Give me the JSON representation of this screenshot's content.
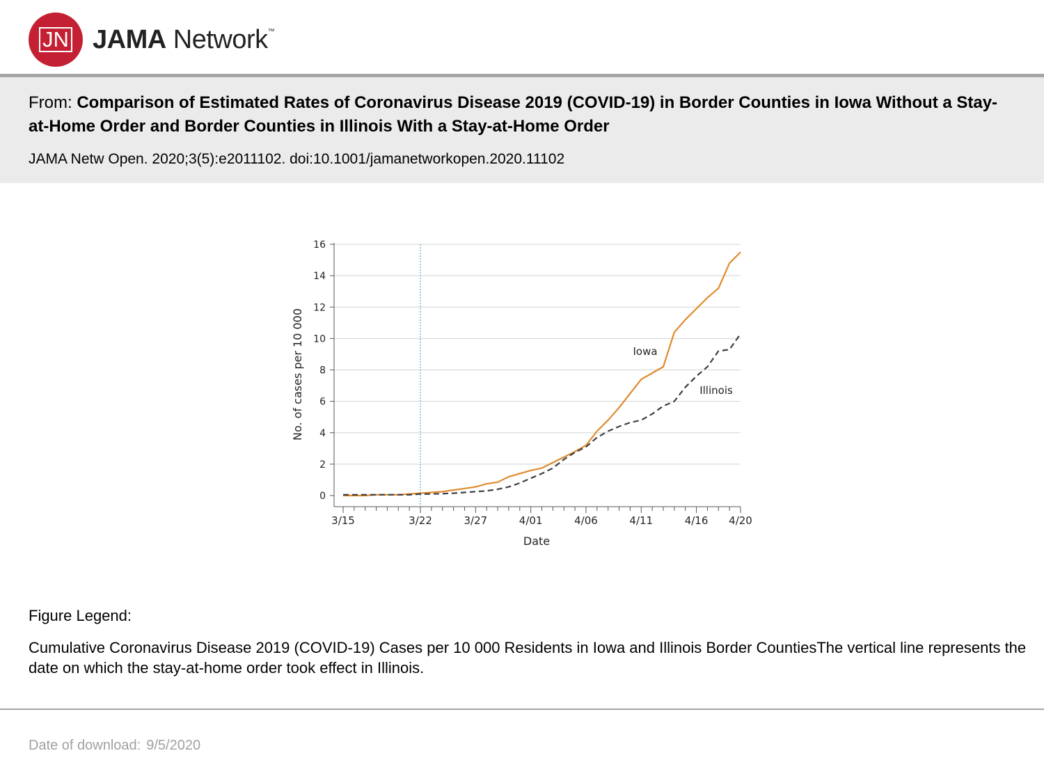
{
  "logo": {
    "mark": "JN",
    "brand_bold": "JAMA",
    "brand_rest": "Network",
    "tm": "™"
  },
  "header": {
    "from_label": "From:",
    "title": "Comparison of Estimated Rates of Coronavirus Disease 2019 (COVID-19) in Border Counties in Iowa Without a Stay-at-Home Order and Border Counties in Illinois With a Stay-at-Home Order",
    "citation": "JAMA Netw Open. 2020;3(5):e2011102. doi:10.1001/jamanetworkopen.2020.11102"
  },
  "legend": {
    "title": "Figure Legend:",
    "text": "Cumulative Coronavirus Disease 2019 (COVID-19) Cases per 10 000 Residents in Iowa and Illinois Border CountiesThe vertical line represents the date on which the stay-at-home order took effect in Illinois."
  },
  "footer": {
    "download_label": "Date of download:",
    "download_date": "9/5/2020"
  },
  "colors": {
    "brand_red": "#c42033",
    "iowa": "#e08a2c",
    "illinois": "#3a3f44",
    "order_line": "#5aa9c6"
  },
  "chart_data": {
    "type": "line",
    "xlabel": "Date",
    "ylabel": "No. of cases per 10 000",
    "ylim": [
      0,
      16
    ],
    "yticks": [
      0,
      2,
      4,
      6,
      8,
      10,
      12,
      14,
      16
    ],
    "xlim": [
      "3/15",
      "4/20"
    ],
    "xtick_labels": [
      "3/15",
      "3/22",
      "3/27",
      "4/01",
      "4/06",
      "4/11",
      "4/16",
      "4/20"
    ],
    "grid": "horizontal",
    "vertical_line": {
      "date": "3/22",
      "style": "dotted"
    },
    "x": [
      "3/15",
      "3/16",
      "3/17",
      "3/18",
      "3/19",
      "3/20",
      "3/21",
      "3/22",
      "3/23",
      "3/24",
      "3/25",
      "3/26",
      "3/27",
      "3/28",
      "3/29",
      "3/30",
      "3/31",
      "4/01",
      "4/02",
      "4/03",
      "4/04",
      "4/05",
      "4/06",
      "4/07",
      "4/08",
      "4/09",
      "4/10",
      "4/11",
      "4/12",
      "4/13",
      "4/14",
      "4/15",
      "4/16",
      "4/17",
      "4/18",
      "4/19",
      "4/20"
    ],
    "series": [
      {
        "name": "Iowa",
        "style": "solid",
        "values": [
          0.0,
          0.0,
          0.0,
          0.05,
          0.05,
          0.05,
          0.1,
          0.15,
          0.2,
          0.25,
          0.35,
          0.45,
          0.55,
          0.75,
          0.85,
          1.2,
          1.4,
          1.6,
          1.75,
          2.1,
          2.45,
          2.8,
          3.2,
          4.1,
          4.8,
          5.6,
          6.5,
          7.4,
          7.8,
          8.2,
          10.4,
          11.2,
          11.9,
          12.6,
          13.2,
          14.8,
          15.5
        ]
      },
      {
        "name": "Illinois",
        "style": "dashed",
        "values": [
          0.05,
          0.05,
          0.05,
          0.05,
          0.05,
          0.05,
          0.05,
          0.1,
          0.1,
          0.12,
          0.15,
          0.2,
          0.25,
          0.3,
          0.4,
          0.55,
          0.8,
          1.1,
          1.4,
          1.75,
          2.3,
          2.75,
          3.1,
          3.7,
          4.1,
          4.4,
          4.65,
          4.8,
          5.2,
          5.7,
          6.0,
          6.9,
          7.6,
          8.2,
          9.2,
          9.3,
          10.3
        ]
      }
    ]
  }
}
